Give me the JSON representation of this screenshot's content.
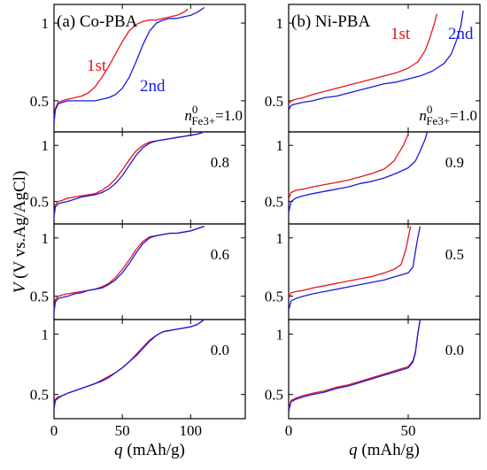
{
  "chart_data": [
    {
      "type": "line",
      "panel_title": "(a) Co-PBA",
      "xlabel": "q (mAh/g)",
      "ylabel": "V (V vs.Ag/AgCl)",
      "xlim": [
        0,
        140
      ],
      "ylim": [
        0.3,
        1.12
      ],
      "xticks": [
        0,
        50,
        100
      ],
      "yticks": [
        0.5,
        1
      ],
      "colors": {
        "1st": "#e8141c",
        "2nd": "#1a1ae0"
      },
      "subpanels": [
        {
          "label": "n0Fe3+=1.0",
          "label_main": "n",
          "label_sup": "0",
          "label_sub": "Fe3+",
          "label_tail": "=1.0",
          "series": [
            {
              "name": "1st",
              "color": "#e8141c",
              "x": [
                0,
                1,
                3,
                6,
                10,
                15,
                20,
                25,
                30,
                35,
                40,
                45,
                50,
                55,
                60,
                65,
                70,
                75,
                80,
                85,
                90,
                95,
                98
              ],
              "y": [
                0.37,
                0.45,
                0.49,
                0.5,
                0.51,
                0.52,
                0.53,
                0.55,
                0.59,
                0.65,
                0.72,
                0.8,
                0.88,
                0.95,
                0.99,
                1.01,
                1.02,
                1.02,
                1.03,
                1.04,
                1.05,
                1.07,
                1.09
              ]
            },
            {
              "name": "2nd",
              "color": "#1a1ae0",
              "x": [
                0,
                1,
                3,
                6,
                10,
                15,
                20,
                25,
                30,
                35,
                40,
                45,
                50,
                55,
                60,
                65,
                70,
                75,
                80,
                85,
                90,
                95,
                100,
                105,
                110
              ],
              "y": [
                0.36,
                0.44,
                0.48,
                0.49,
                0.5,
                0.5,
                0.5,
                0.5,
                0.5,
                0.51,
                0.52,
                0.54,
                0.58,
                0.65,
                0.75,
                0.86,
                0.95,
                1.0,
                1.02,
                1.03,
                1.03,
                1.04,
                1.05,
                1.07,
                1.1
              ]
            }
          ]
        },
        {
          "label": "0.8",
          "series": [
            {
              "name": "1st",
              "color": "#e8141c",
              "x": [
                0,
                1,
                3,
                6,
                10,
                15,
                20,
                25,
                30,
                35,
                40,
                45,
                50,
                55,
                60,
                65,
                70,
                75,
                80,
                85,
                90,
                95,
                100,
                105,
                110
              ],
              "y": [
                0.38,
                0.47,
                0.5,
                0.51,
                0.53,
                0.54,
                0.55,
                0.56,
                0.57,
                0.6,
                0.64,
                0.7,
                0.78,
                0.87,
                0.95,
                1.0,
                1.03,
                1.04,
                1.05,
                1.06,
                1.07,
                1.08,
                1.09,
                1.1,
                1.12
              ]
            },
            {
              "name": "2nd",
              "color": "#1a1ae0",
              "x": [
                0,
                1,
                3,
                6,
                10,
                15,
                20,
                25,
                30,
                35,
                40,
                45,
                50,
                55,
                60,
                65,
                70,
                75,
                80,
                85,
                90,
                95,
                100,
                105,
                110
              ],
              "y": [
                0.36,
                0.45,
                0.48,
                0.49,
                0.5,
                0.52,
                0.54,
                0.55,
                0.56,
                0.58,
                0.61,
                0.66,
                0.73,
                0.82,
                0.91,
                0.98,
                1.02,
                1.04,
                1.05,
                1.06,
                1.07,
                1.08,
                1.09,
                1.1,
                1.12
              ]
            }
          ]
        },
        {
          "label": "0.6",
          "series": [
            {
              "name": "1st",
              "color": "#e8141c",
              "x": [
                0,
                1,
                3,
                6,
                10,
                15,
                20,
                25,
                30,
                35,
                40,
                45,
                50,
                55,
                60,
                65,
                70,
                75,
                80,
                85,
                90,
                95,
                100,
                105,
                110
              ],
              "y": [
                0.38,
                0.47,
                0.5,
                0.51,
                0.52,
                0.53,
                0.54,
                0.55,
                0.56,
                0.58,
                0.61,
                0.66,
                0.73,
                0.81,
                0.9,
                0.97,
                1.01,
                1.02,
                1.03,
                1.04,
                1.04,
                1.05,
                1.06,
                1.08,
                1.1
              ]
            },
            {
              "name": "2nd",
              "color": "#1a1ae0",
              "x": [
                0,
                1,
                3,
                6,
                10,
                15,
                20,
                25,
                30,
                35,
                40,
                45,
                50,
                55,
                60,
                65,
                70,
                75,
                80,
                85,
                90,
                95,
                100,
                105,
                110
              ],
              "y": [
                0.36,
                0.45,
                0.48,
                0.49,
                0.5,
                0.52,
                0.53,
                0.55,
                0.56,
                0.57,
                0.6,
                0.64,
                0.7,
                0.78,
                0.87,
                0.95,
                1.0,
                1.02,
                1.03,
                1.04,
                1.04,
                1.05,
                1.06,
                1.08,
                1.1
              ]
            }
          ]
        },
        {
          "label": "0.0",
          "series": [
            {
              "name": "1st",
              "color": "#e8141c",
              "x": [
                0,
                1,
                3,
                6,
                10,
                15,
                20,
                25,
                30,
                35,
                40,
                45,
                50,
                55,
                60,
                65,
                70,
                75,
                80,
                85,
                90,
                95,
                100,
                105,
                110
              ],
              "y": [
                0.4,
                0.46,
                0.48,
                0.49,
                0.51,
                0.53,
                0.55,
                0.57,
                0.59,
                0.62,
                0.65,
                0.68,
                0.72,
                0.77,
                0.83,
                0.89,
                0.95,
                0.99,
                1.02,
                1.03,
                1.04,
                1.05,
                1.06,
                1.08,
                1.12
              ]
            },
            {
              "name": "2nd",
              "color": "#1a1ae0",
              "x": [
                0,
                1,
                3,
                6,
                10,
                15,
                20,
                25,
                30,
                35,
                40,
                45,
                50,
                55,
                60,
                65,
                70,
                75,
                80,
                85,
                90,
                95,
                100,
                105,
                110
              ],
              "y": [
                0.38,
                0.45,
                0.47,
                0.49,
                0.51,
                0.53,
                0.55,
                0.57,
                0.59,
                0.61,
                0.64,
                0.68,
                0.72,
                0.77,
                0.82,
                0.88,
                0.94,
                0.99,
                1.02,
                1.03,
                1.04,
                1.05,
                1.06,
                1.08,
                1.12
              ]
            }
          ]
        }
      ]
    },
    {
      "type": "line",
      "panel_title": "(b) Ni-PBA",
      "xlabel": "q (mAh/g)",
      "ylabel": "",
      "xlim": [
        0,
        80
      ],
      "ylim": [
        0.3,
        1.12
      ],
      "xticks": [
        0,
        50
      ],
      "yticks": [
        0.5,
        1
      ],
      "colors": {
        "1st": "#e8141c",
        "2nd": "#1a1ae0"
      },
      "subpanels": [
        {
          "label": "n0Fe3+=1.0",
          "label_main": "n",
          "label_sup": "0",
          "label_sub": "Fe3+",
          "label_tail": "=1.0",
          "legend": [
            "1st",
            "2nd"
          ],
          "series": [
            {
              "name": "1st",
              "color": "#e8141c",
              "x": [
                0,
                1,
                3,
                6,
                10,
                15,
                20,
                25,
                30,
                35,
                40,
                45,
                50,
                54,
                57,
                59,
                61,
                62
              ],
              "y": [
                0.48,
                0.5,
                0.51,
                0.52,
                0.54,
                0.56,
                0.58,
                0.6,
                0.62,
                0.64,
                0.66,
                0.68,
                0.71,
                0.75,
                0.82,
                0.9,
                1.0,
                1.06
              ]
            },
            {
              "name": "2nd",
              "color": "#1a1ae0",
              "x": [
                0,
                1,
                3,
                6,
                10,
                15,
                20,
                25,
                30,
                35,
                40,
                45,
                50,
                55,
                60,
                65,
                68,
                70,
                72,
                73
              ],
              "y": [
                0.44,
                0.47,
                0.48,
                0.49,
                0.5,
                0.52,
                0.53,
                0.55,
                0.57,
                0.59,
                0.61,
                0.62,
                0.64,
                0.66,
                0.69,
                0.74,
                0.8,
                0.88,
                0.98,
                1.08
              ]
            }
          ]
        },
        {
          "label": "0.9",
          "series": [
            {
              "name": "1st",
              "color": "#e8141c",
              "x": [
                0,
                1,
                3,
                6,
                10,
                15,
                20,
                25,
                30,
                35,
                40,
                44,
                46,
                48,
                50
              ],
              "y": [
                0.52,
                0.58,
                0.6,
                0.61,
                0.63,
                0.65,
                0.67,
                0.69,
                0.72,
                0.75,
                0.79,
                0.86,
                0.93,
                1.0,
                1.1
              ]
            },
            {
              "name": "2nd",
              "color": "#1a1ae0",
              "x": [
                0,
                1,
                3,
                6,
                10,
                15,
                20,
                25,
                30,
                35,
                40,
                45,
                50,
                53,
                55,
                57,
                58
              ],
              "y": [
                0.4,
                0.5,
                0.53,
                0.55,
                0.57,
                0.59,
                0.61,
                0.63,
                0.66,
                0.68,
                0.71,
                0.75,
                0.8,
                0.86,
                0.95,
                1.05,
                1.12
              ]
            }
          ]
        },
        {
          "label": "0.5",
          "series": [
            {
              "name": "1st",
              "color": "#e8141c",
              "x": [
                0,
                1,
                3,
                6,
                10,
                15,
                20,
                25,
                30,
                35,
                40,
                44,
                47,
                49,
                50,
                51
              ],
              "y": [
                0.48,
                0.53,
                0.54,
                0.55,
                0.57,
                0.59,
                0.61,
                0.63,
                0.65,
                0.67,
                0.7,
                0.73,
                0.77,
                0.9,
                1.0,
                1.1
              ]
            },
            {
              "name": "2nd",
              "color": "#1a1ae0",
              "x": [
                0,
                1,
                3,
                6,
                10,
                15,
                20,
                25,
                30,
                35,
                40,
                45,
                50,
                52,
                53,
                54,
                55
              ],
              "y": [
                0.38,
                0.46,
                0.48,
                0.5,
                0.52,
                0.54,
                0.56,
                0.58,
                0.6,
                0.62,
                0.64,
                0.67,
                0.7,
                0.75,
                0.88,
                1.0,
                1.1
              ]
            }
          ]
        },
        {
          "label": "0.0",
          "series": [
            {
              "name": "1st",
              "color": "#e8141c",
              "x": [
                0,
                1,
                3,
                6,
                10,
                15,
                20,
                25,
                30,
                35,
                40,
                45,
                50,
                52,
                53,
                54,
                55
              ],
              "y": [
                0.38,
                0.45,
                0.47,
                0.49,
                0.51,
                0.53,
                0.56,
                0.58,
                0.61,
                0.64,
                0.67,
                0.7,
                0.73,
                0.78,
                0.85,
                1.0,
                1.12
              ]
            },
            {
              "name": "2nd",
              "color": "#1a1ae0",
              "x": [
                0,
                1,
                3,
                6,
                10,
                15,
                20,
                25,
                30,
                35,
                40,
                45,
                50,
                52,
                53,
                54,
                55
              ],
              "y": [
                0.36,
                0.44,
                0.46,
                0.48,
                0.5,
                0.52,
                0.55,
                0.57,
                0.6,
                0.63,
                0.66,
                0.69,
                0.72,
                0.77,
                0.84,
                1.0,
                1.12
              ]
            }
          ]
        }
      ]
    }
  ]
}
